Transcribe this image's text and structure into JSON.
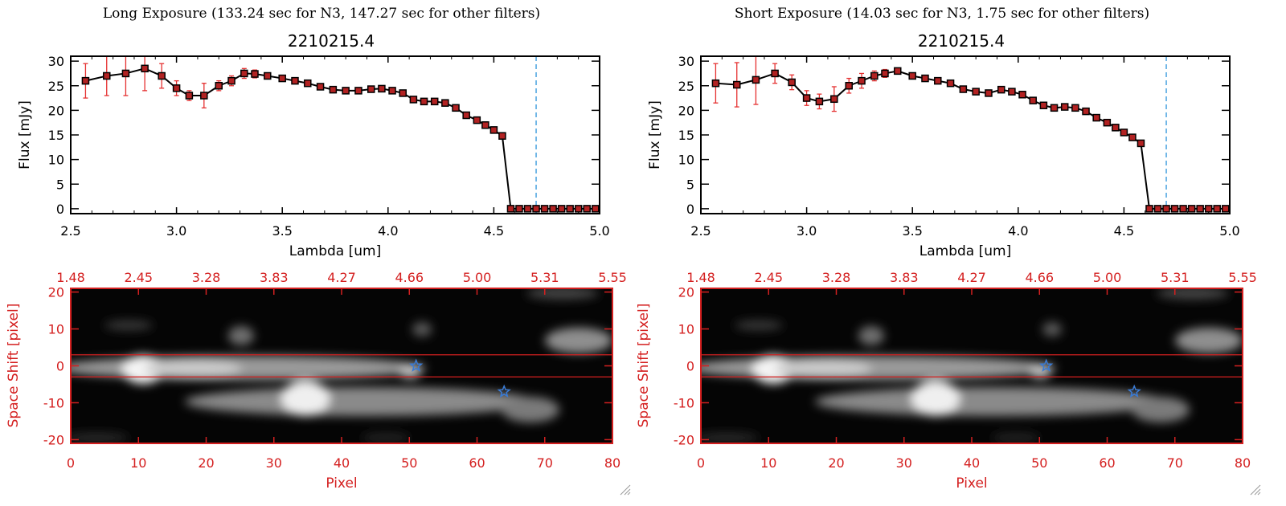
{
  "chart_data": [
    {
      "type": "line",
      "panel": "left",
      "header": "Long Exposure (133.24 sec for N3, 147.27 sec for other filters)",
      "title": "2210215.4",
      "xlabel": "Lambda [um]",
      "ylabel": "Flux [mJy]",
      "xlim": [
        2.5,
        5.0
      ],
      "ylim": [
        -1,
        31
      ],
      "xticks": [
        "2.5",
        "3.0",
        "3.5",
        "4.0",
        "4.5",
        "5.0"
      ],
      "yticks": [
        "0",
        "5",
        "10",
        "15",
        "20",
        "25",
        "30"
      ],
      "reference_line_x": 4.7,
      "series": [
        {
          "name": "flux",
          "x": [
            2.57,
            2.67,
            2.76,
            2.85,
            2.93,
            3.0,
            3.06,
            3.13,
            3.2,
            3.26,
            3.32,
            3.37,
            3.43,
            3.5,
            3.56,
            3.62,
            3.68,
            3.74,
            3.8,
            3.86,
            3.92,
            3.97,
            4.02,
            4.07,
            4.12,
            4.17,
            4.22,
            4.27,
            4.32,
            4.37,
            4.42,
            4.46,
            4.5,
            4.54,
            4.58,
            4.62,
            4.66,
            4.7,
            4.74,
            4.78,
            4.82,
            4.86,
            4.9,
            4.94,
            4.98
          ],
          "y": [
            26.0,
            27.0,
            27.5,
            28.5,
            27.0,
            24.5,
            23.0,
            23.0,
            25.0,
            26.0,
            27.5,
            27.4,
            27.0,
            26.5,
            26.0,
            25.5,
            24.8,
            24.2,
            24.0,
            24.0,
            24.3,
            24.4,
            24.0,
            23.5,
            22.2,
            21.8,
            21.8,
            21.5,
            20.5,
            19.0,
            18.0,
            17.0,
            16.0,
            14.8,
            0,
            0,
            0,
            0,
            0,
            0,
            0,
            0,
            0,
            0,
            0
          ],
          "yerr": [
            3.5,
            4.0,
            4.5,
            4.5,
            2.5,
            1.5,
            1.0,
            2.5,
            1.0,
            1.0,
            1.0,
            0.8,
            0.5,
            0.5,
            0.5,
            0.5,
            0.5,
            0.5,
            0.5,
            0.5,
            0.5,
            0.5,
            0.5,
            0.5,
            0.5,
            0.5,
            0.5,
            0.5,
            0.5,
            0.5,
            0.5,
            0.5,
            0.5,
            0.5,
            0.3,
            0.3,
            0.3,
            0.3,
            0.3,
            0.3,
            0.3,
            0.3,
            0.3,
            0.3,
            0.3
          ]
        }
      ],
      "image_panel": {
        "xlabel": "Pixel",
        "ylabel": "Space Shift [pixel]",
        "xlim": [
          0,
          80
        ],
        "ylim": [
          -21,
          21
        ],
        "xticks": [
          "0",
          "10",
          "20",
          "30",
          "40",
          "50",
          "60",
          "70",
          "80"
        ],
        "yticks": [
          "-20",
          "-10",
          "0",
          "10",
          "20"
        ],
        "top_ticks": [
          "1.48",
          "2.45",
          "3.28",
          "3.83",
          "4.27",
          "4.66",
          "5.00",
          "5.31",
          "5.55"
        ],
        "aperture_lines_y": [
          3,
          -3
        ],
        "source_markers": [
          {
            "x": 51,
            "y": 0
          },
          {
            "x": 64,
            "y": -7
          }
        ]
      }
    },
    {
      "type": "line",
      "panel": "right",
      "header": "Short Exposure (14.03 sec for N3, 1.75 sec for other filters)",
      "title": "2210215.4",
      "xlabel": "Lambda [um]",
      "ylabel": "Flux [mJy]",
      "xlim": [
        2.5,
        5.0
      ],
      "ylim": [
        -1,
        31
      ],
      "xticks": [
        "2.5",
        "3.0",
        "3.5",
        "4.0",
        "4.5",
        "5.0"
      ],
      "yticks": [
        "0",
        "5",
        "10",
        "15",
        "20",
        "25",
        "30"
      ],
      "reference_line_x": 4.7,
      "series": [
        {
          "name": "flux",
          "x": [
            2.57,
            2.67,
            2.76,
            2.85,
            2.93,
            3.0,
            3.06,
            3.13,
            3.2,
            3.26,
            3.32,
            3.37,
            3.43,
            3.5,
            3.56,
            3.62,
            3.68,
            3.74,
            3.8,
            3.86,
            3.92,
            3.97,
            4.02,
            4.07,
            4.12,
            4.17,
            4.22,
            4.27,
            4.32,
            4.37,
            4.42,
            4.46,
            4.5,
            4.54,
            4.58,
            4.62,
            4.66,
            4.7,
            4.74,
            4.78,
            4.82,
            4.86,
            4.9,
            4.94,
            4.98
          ],
          "y": [
            25.5,
            25.2,
            26.2,
            27.5,
            25.7,
            22.5,
            21.8,
            22.3,
            25.0,
            26.0,
            27.0,
            27.5,
            28.0,
            27.0,
            26.5,
            26.0,
            25.5,
            24.3,
            23.8,
            23.5,
            24.2,
            23.8,
            23.2,
            22.0,
            21.0,
            20.5,
            20.7,
            20.5,
            19.8,
            18.5,
            17.5,
            16.5,
            15.5,
            14.5,
            13.3,
            0,
            0,
            0,
            0,
            0,
            0,
            0,
            0,
            0,
            0
          ],
          "yerr": [
            4.0,
            4.5,
            5.0,
            2.0,
            1.5,
            1.5,
            1.5,
            2.5,
            1.5,
            1.5,
            1.0,
            0.8,
            0.5,
            0.5,
            0.5,
            0.5,
            0.5,
            0.5,
            0.5,
            0.5,
            0.5,
            0.5,
            0.5,
            0.5,
            0.5,
            0.5,
            0.5,
            0.5,
            0.5,
            0.5,
            0.5,
            0.5,
            0.5,
            0.5,
            0.5,
            0.3,
            0.3,
            0.3,
            0.3,
            0.3,
            0.3,
            0.3,
            0.3,
            0.3,
            0.3
          ]
        }
      ],
      "image_panel": {
        "xlabel": "Pixel",
        "ylabel": "Space Shift [pixel]",
        "xlim": [
          0,
          80
        ],
        "ylim": [
          -21,
          21
        ],
        "xticks": [
          "0",
          "10",
          "20",
          "30",
          "40",
          "50",
          "60",
          "70",
          "80"
        ],
        "yticks": [
          "-20",
          "-10",
          "0",
          "10",
          "20"
        ],
        "top_ticks": [
          "1.48",
          "2.45",
          "3.28",
          "3.83",
          "4.27",
          "4.66",
          "5.00",
          "5.31",
          "5.55"
        ],
        "aperture_lines_y": [
          3,
          -3
        ],
        "source_markers": [
          {
            "x": 51,
            "y": 0
          },
          {
            "x": 64,
            "y": -7
          }
        ]
      }
    }
  ],
  "colors": {
    "axis": "#000000",
    "line": "#000000",
    "marker": "#b22222",
    "errorbar": "#e53030",
    "reference_line": "#4aa3e0",
    "image_axis": "#d42020",
    "image_lines": "#d42020",
    "source_marker": "#3a7bd5"
  }
}
